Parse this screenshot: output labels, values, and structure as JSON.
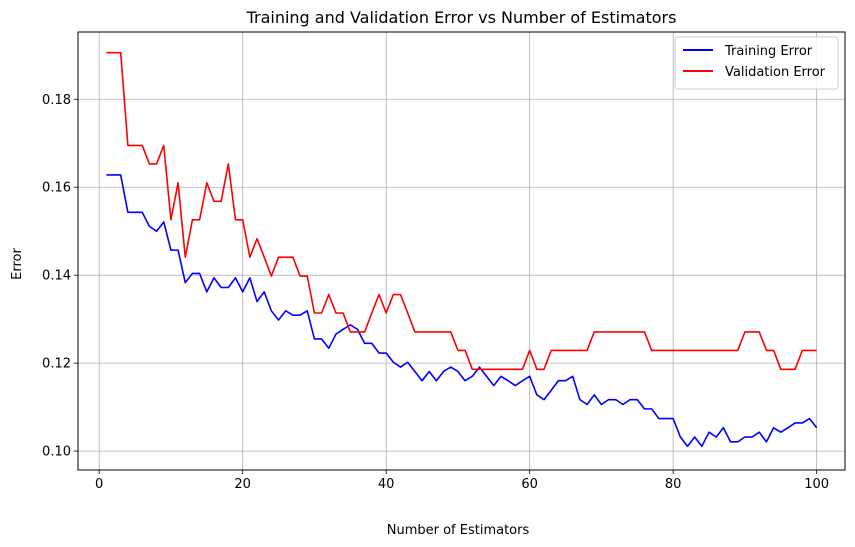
{
  "chart_data": {
    "type": "line",
    "title": "Training and Validation Error vs Number of Estimators",
    "xlabel": "Number of Estimators",
    "ylabel": "Error",
    "xlim": [
      -2.95,
      103.95
    ],
    "ylim": [
      0.0957,
      0.1953
    ],
    "xticks": [
      0,
      20,
      40,
      60,
      80,
      100
    ],
    "yticks": [
      0.1,
      0.12,
      0.14,
      0.16,
      0.18
    ],
    "ytick_labels": [
      "0.10",
      "0.12",
      "0.14",
      "0.16",
      "0.18"
    ],
    "grid": true,
    "legend_position": "top-right",
    "x": [
      1,
      2,
      3,
      4,
      5,
      6,
      7,
      8,
      9,
      10,
      11,
      12,
      13,
      14,
      15,
      16,
      17,
      18,
      19,
      20,
      21,
      22,
      23,
      24,
      25,
      26,
      27,
      28,
      29,
      30,
      31,
      32,
      33,
      34,
      35,
      36,
      37,
      38,
      39,
      40,
      41,
      42,
      43,
      44,
      45,
      46,
      47,
      48,
      49,
      50,
      51,
      52,
      53,
      54,
      55,
      56,
      57,
      58,
      59,
      60,
      61,
      62,
      63,
      64,
      65,
      66,
      67,
      68,
      69,
      70,
      71,
      72,
      73,
      74,
      75,
      76,
      77,
      78,
      79,
      80,
      81,
      82,
      83,
      84,
      85,
      86,
      87,
      88,
      89,
      90,
      91,
      92,
      93,
      94,
      95,
      96,
      97,
      98,
      99,
      100
    ],
    "series": [
      {
        "name": "Training Error",
        "color": "#0000ff",
        "values": [
          0.1628,
          0.1628,
          0.1628,
          0.1543,
          0.1543,
          0.1543,
          0.1511,
          0.15,
          0.1521,
          0.1457,
          0.1457,
          0.1383,
          0.1404,
          0.1404,
          0.1362,
          0.1394,
          0.1372,
          0.1372,
          0.1394,
          0.1362,
          0.1394,
          0.134,
          0.1362,
          0.1319,
          0.1298,
          0.1319,
          0.1309,
          0.1309,
          0.1319,
          0.1255,
          0.1255,
          0.1234,
          0.1266,
          0.1277,
          0.1287,
          0.1277,
          0.1245,
          0.1245,
          0.1223,
          0.1223,
          0.1202,
          0.1191,
          0.1202,
          0.1181,
          0.116,
          0.1181,
          0.116,
          0.1181,
          0.1191,
          0.1181,
          0.116,
          0.117,
          0.1191,
          0.117,
          0.1149,
          0.117,
          0.116,
          0.1149,
          0.116,
          0.117,
          0.1128,
          0.1117,
          0.1138,
          0.116,
          0.116,
          0.117,
          0.1117,
          0.1106,
          0.1128,
          0.1106,
          0.1117,
          0.1117,
          0.1106,
          0.1117,
          0.1117,
          0.1096,
          0.1096,
          0.1074,
          0.1074,
          0.1074,
          0.1032,
          0.1011,
          0.1032,
          0.1011,
          0.1043,
          0.1032,
          0.1053,
          0.1021,
          0.1021,
          0.1032,
          0.1032,
          0.1043,
          0.1021,
          0.1053,
          0.1043,
          0.1053,
          0.1064,
          0.1064,
          0.1074,
          0.1053
        ]
      },
      {
        "name": "Validation Error",
        "color": "#ff0000",
        "values": [
          0.1906,
          0.1906,
          0.1906,
          0.1695,
          0.1695,
          0.1695,
          0.1653,
          0.1653,
          0.1695,
          0.1526,
          0.161,
          0.1441,
          0.1526,
          0.1526,
          0.161,
          0.1568,
          0.1568,
          0.1653,
          0.1526,
          0.1526,
          0.1441,
          0.1483,
          0.1441,
          0.1398,
          0.1441,
          0.1441,
          0.1441,
          0.1398,
          0.1398,
          0.1314,
          0.1314,
          0.1356,
          0.1314,
          0.1314,
          0.1271,
          0.1271,
          0.1271,
          0.1314,
          0.1356,
          0.1314,
          0.1356,
          0.1356,
          0.1314,
          0.1271,
          0.1271,
          0.1271,
          0.1271,
          0.1271,
          0.1271,
          0.1229,
          0.1229,
          0.1186,
          0.1186,
          0.1186,
          0.1186,
          0.1186,
          0.1186,
          0.1186,
          0.1186,
          0.1229,
          0.1186,
          0.1186,
          0.1229,
          0.1229,
          0.1229,
          0.1229,
          0.1229,
          0.1229,
          0.1271,
          0.1271,
          0.1271,
          0.1271,
          0.1271,
          0.1271,
          0.1271,
          0.1271,
          0.1229,
          0.1229,
          0.1229,
          0.1229,
          0.1229,
          0.1229,
          0.1229,
          0.1229,
          0.1229,
          0.1229,
          0.1229,
          0.1229,
          0.1229,
          0.1271,
          0.1271,
          0.1271,
          0.1229,
          0.1229,
          0.1186,
          0.1186,
          0.1186,
          0.1229,
          0.1229,
          0.1229
        ]
      }
    ]
  }
}
